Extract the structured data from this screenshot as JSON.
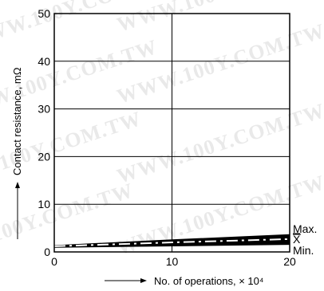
{
  "chart_data": {
    "type": "line",
    "xlabel": "No. of operations, × 10⁴",
    "ylabel": "Contact resistance, mΩ",
    "xlim": [
      0,
      20
    ],
    "ylim": [
      0,
      50
    ],
    "x_ticks": [
      "0",
      "10",
      "20"
    ],
    "y_ticks": [
      "0",
      "10",
      "20",
      "30",
      "40",
      "50"
    ],
    "grid": true,
    "series": [
      {
        "name": "Max.",
        "x": [
          0,
          10,
          20
        ],
        "values": [
          1.3,
          2.5,
          3.6
        ],
        "style": "solid"
      },
      {
        "name": "X",
        "x": [
          0,
          10,
          20
        ],
        "values": [
          1.2,
          2.0,
          2.7
        ],
        "style": "dash-dot"
      },
      {
        "name": "Min.",
        "x": [
          0,
          10,
          20
        ],
        "values": [
          1.0,
          1.3,
          1.6
        ],
        "style": "solid"
      }
    ],
    "watermark": "WWW.100Y.COM.TW"
  }
}
